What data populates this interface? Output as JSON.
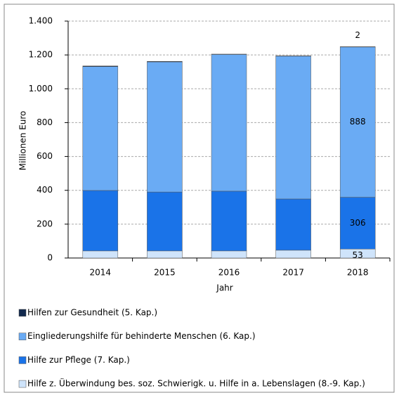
{
  "chart_data": {
    "type": "stacked_bar",
    "x_label": "Jahr",
    "y_label": "Millionen Euro",
    "categories": [
      "2014",
      "2015",
      "2016",
      "2017",
      "2018"
    ],
    "series": [
      {
        "name": "Hilfe z. Überwindung bes. soz. Schwierigk. u. Hilfe in a. Lebenslagen (8.-9. Kap.)",
        "color": "#cfe4fb",
        "values": [
          42,
          42,
          42,
          46,
          53
        ],
        "value_labels": [
          null,
          null,
          null,
          null,
          "53"
        ]
      },
      {
        "name": "Hilfe zur Pflege (7. Kap.)",
        "color": "#1a73e8",
        "values": [
          357,
          348,
          353,
          303,
          306
        ],
        "value_labels": [
          null,
          null,
          null,
          null,
          "306"
        ]
      },
      {
        "name": "Eingliederungshilfe für behinderte Menschen (6. Kap.)",
        "color": "#6aabf4",
        "values": [
          732,
          769,
          808,
          844,
          888
        ],
        "value_labels": [
          null,
          null,
          null,
          null,
          "888"
        ]
      },
      {
        "name": "Hilfen zur Gesundheit (5. Kap.)",
        "color": "#12294d",
        "values": [
          4,
          3,
          2,
          2,
          2
        ],
        "value_labels": [
          null,
          null,
          null,
          null,
          "2"
        ]
      }
    ],
    "ylim": [
      0,
      1400
    ],
    "yticks": [
      0,
      200,
      400,
      600,
      800,
      {
        "value": 1000,
        "label": "1.000"
      },
      {
        "value": 1200,
        "label": "1.200"
      },
      {
        "value": 1400,
        "label": "1.400"
      }
    ],
    "grid": true
  }
}
